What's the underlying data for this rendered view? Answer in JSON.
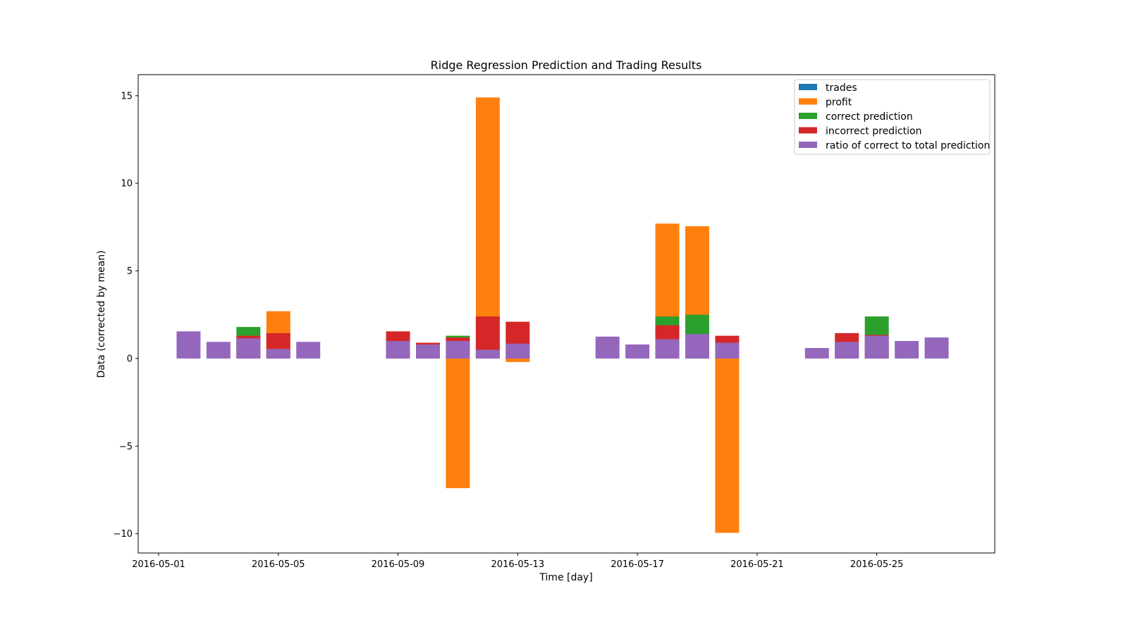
{
  "chart_data": {
    "type": "bar",
    "title": "Ridge Regression Prediction and Trading Results",
    "xlabel": "Time [day]",
    "ylabel": "Data (corrected by mean)",
    "xlim": [
      "2016-05-01",
      "2016-05-28"
    ],
    "ylim": [
      -11.1,
      16.2
    ],
    "x_ticks": [
      "2016-05-01",
      "2016-05-05",
      "2016-05-09",
      "2016-05-13",
      "2016-05-17",
      "2016-05-21",
      "2016-05-25"
    ],
    "y_ticks": [
      -10,
      -5,
      0,
      5,
      10,
      15
    ],
    "y_tick_labels": [
      "−10",
      "−5",
      "0",
      "5",
      "10",
      "15"
    ],
    "grid": false,
    "legend_position": "top-right",
    "x": [
      "2016-05-02",
      "2016-05-03",
      "2016-05-04",
      "2016-05-05",
      "2016-05-06",
      "2016-05-09",
      "2016-05-10",
      "2016-05-11",
      "2016-05-12",
      "2016-05-13",
      "2016-05-16",
      "2016-05-17",
      "2016-05-18",
      "2016-05-19",
      "2016-05-20",
      "2016-05-23",
      "2016-05-24",
      "2016-05-25",
      "2016-05-26",
      "2016-05-27"
    ],
    "series": [
      {
        "name": "trades",
        "color": "#1f77b4",
        "values": [
          0,
          0,
          0,
          0,
          0,
          0,
          0,
          0,
          0,
          0,
          0,
          0,
          0,
          0,
          0,
          0,
          0,
          0,
          0,
          0
        ]
      },
      {
        "name": "profit",
        "color": "#ff7f0e",
        "values": [
          0,
          0,
          0,
          2.7,
          0,
          0,
          0,
          -7.4,
          14.9,
          -0.2,
          0,
          0,
          7.7,
          7.55,
          -9.95,
          0,
          0,
          0,
          0,
          0
        ]
      },
      {
        "name": "correct prediction",
        "color": "#2ca02c",
        "values": [
          0,
          0,
          1.8,
          0,
          0,
          0,
          0,
          1.3,
          0,
          0,
          0,
          0,
          2.4,
          2.5,
          0,
          0,
          0,
          2.4,
          0,
          0
        ]
      },
      {
        "name": "incorrect prediction",
        "color": "#d62728",
        "values": [
          0,
          0,
          1.3,
          1.45,
          0,
          1.55,
          0.9,
          1.2,
          2.4,
          2.1,
          0,
          0,
          1.9,
          0,
          1.3,
          0,
          1.45,
          1.35,
          0,
          0
        ]
      },
      {
        "name": "ratio of correct to total prediction",
        "color": "#9467bd",
        "values": [
          1.55,
          0.95,
          1.15,
          0.55,
          0.95,
          1.0,
          0.8,
          1.0,
          0.5,
          0.85,
          1.25,
          0.8,
          1.1,
          1.4,
          0.9,
          0.6,
          0.95,
          1.3,
          1.0,
          1.2
        ]
      }
    ]
  }
}
